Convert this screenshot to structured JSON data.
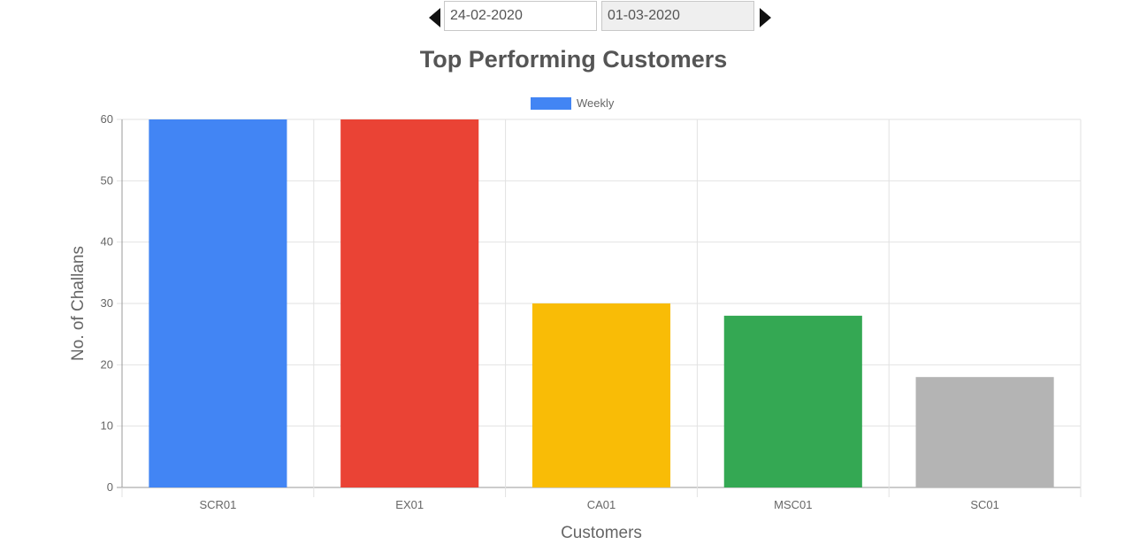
{
  "date_range": {
    "start": "24-02-2020",
    "end": "01-03-2020"
  },
  "chart_data": {
    "type": "bar",
    "title": "Top Performing Customers",
    "xlabel": "Customers",
    "ylabel": "No. of Challans",
    "categories": [
      "SCR01",
      "EX01",
      "CA01",
      "MSC01",
      "SC01"
    ],
    "series": [
      {
        "name": "Weekly",
        "values": [
          60,
          60,
          30,
          28,
          18
        ]
      }
    ],
    "bar_colors": [
      "#4285f4",
      "#ea4335",
      "#f9bc06",
      "#34a853",
      "#b4b4b4"
    ],
    "ylim": [
      0,
      60
    ],
    "yticks": [
      0,
      10,
      20,
      30,
      40,
      50,
      60
    ],
    "grid": true,
    "legend_position": "top",
    "legend_color": "#4285f4"
  }
}
